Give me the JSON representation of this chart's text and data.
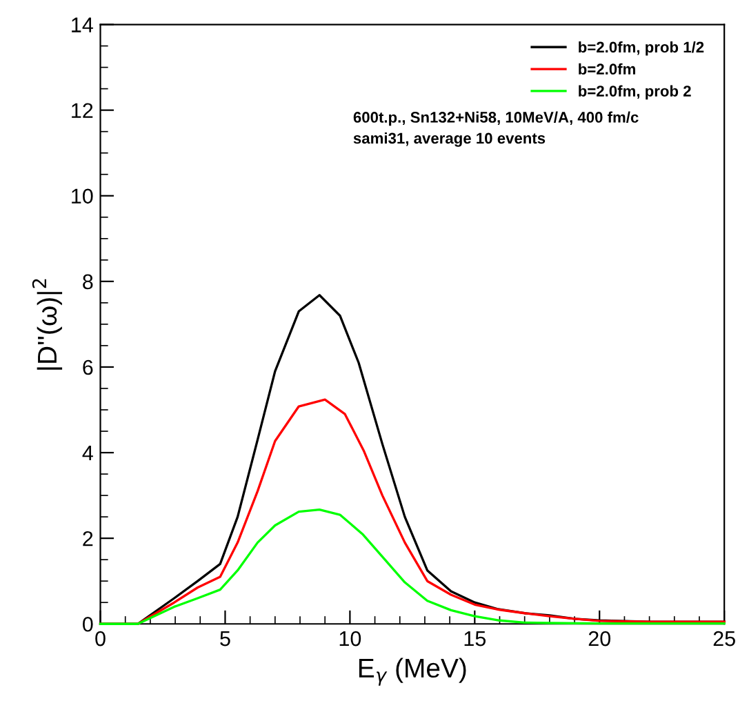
{
  "chart_data": {
    "type": "line",
    "xlabel": "E$_{γ}$ (MeV)",
    "ylabel": "|D''(ω)|$^{2}$",
    "xlim": [
      0,
      25
    ],
    "ylim": [
      0,
      14
    ],
    "xticks": [
      0,
      5,
      10,
      15,
      20,
      25
    ],
    "yticks": [
      0,
      2,
      4,
      6,
      8,
      10,
      12,
      14
    ],
    "grid": false,
    "legend": "top right",
    "marker": "none",
    "line_style": "solid",
    "annotations": [
      "600t.p., Sn132+Ni58, 10MeV/A, 400 fm/c",
      "sami31, average 10 events"
    ],
    "series": [
      {
        "name": "b=2.0fm, prob 1/2",
        "color": "#000000",
        "x": [
          0,
          1.5,
          2.96,
          3.9,
          4.8,
          5.5,
          6.3,
          7.0,
          7.95,
          8.78,
          9.6,
          10.35,
          11.3,
          12.2,
          13.1,
          14.05,
          15.0,
          15.9,
          17,
          18,
          19,
          20,
          22,
          25
        ],
        "values": [
          0,
          0,
          0.6,
          1.0,
          1.4,
          2.5,
          4.3,
          5.9,
          7.3,
          7.68,
          7.2,
          6.1,
          4.2,
          2.5,
          1.25,
          0.76,
          0.5,
          0.35,
          0.25,
          0.2,
          0.12,
          0.08,
          0.05,
          0.05
        ]
      },
      {
        "name": "b=2.0fm",
        "color": "#ff0000",
        "x": [
          0,
          1.5,
          2.96,
          3.9,
          4.8,
          5.5,
          6.3,
          7.0,
          7.95,
          9.0,
          9.8,
          10.55,
          11.3,
          12.2,
          13.1,
          14.05,
          15.0,
          16,
          17,
          18,
          19,
          20,
          22,
          25
        ],
        "values": [
          0,
          0,
          0.5,
          0.85,
          1.1,
          1.9,
          3.1,
          4.27,
          5.08,
          5.24,
          4.9,
          4.05,
          3.0,
          1.9,
          1.0,
          0.68,
          0.45,
          0.33,
          0.25,
          0.18,
          0.12,
          0.07,
          0.05,
          0.05
        ]
      },
      {
        "name": "b=2.0fm, prob 2",
        "color": "#00ff00",
        "x": [
          0,
          1.5,
          2.96,
          3.9,
          4.8,
          5.5,
          6.3,
          7.0,
          7.95,
          8.78,
          9.6,
          10.5,
          11.3,
          12.2,
          13.1,
          14.05,
          15.0,
          16,
          17,
          18,
          20,
          25
        ],
        "values": [
          0,
          0,
          0.4,
          0.6,
          0.8,
          1.25,
          1.9,
          2.3,
          2.62,
          2.67,
          2.55,
          2.1,
          1.57,
          0.97,
          0.54,
          0.32,
          0.18,
          0.08,
          0.03,
          0.02,
          0.01,
          0.01
        ]
      }
    ]
  }
}
